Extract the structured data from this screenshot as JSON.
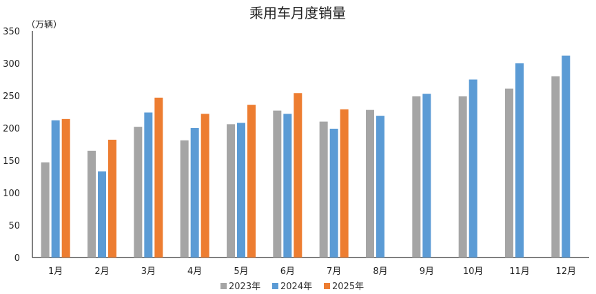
{
  "chart_data": {
    "type": "bar",
    "title": "乘用车月度销量",
    "unit_label": "（万辆）",
    "ylim": [
      0,
      350
    ],
    "y_ticks": [
      0,
      50,
      100,
      150,
      200,
      250,
      300,
      350
    ],
    "categories": [
      "1月",
      "2月",
      "3月",
      "4月",
      "5月",
      "6月",
      "7月",
      "8月",
      "9月",
      "10月",
      "11月",
      "12月"
    ],
    "series": [
      {
        "name": "2023年",
        "color": "#a5a5a5",
        "values": [
          147,
          165,
          202,
          181,
          206,
          227,
          210,
          228,
          249,
          249,
          261,
          280
        ]
      },
      {
        "name": "2024年",
        "color": "#5b9bd5",
        "values": [
          212,
          133,
          224,
          200,
          208,
          222,
          199,
          219,
          253,
          275,
          300,
          312
        ]
      },
      {
        "name": "2025年",
        "color": "#ed7d31",
        "values": [
          214,
          182,
          247,
          222,
          236,
          254,
          229,
          null,
          null,
          null,
          null,
          null
        ]
      }
    ],
    "legend_position": "bottom",
    "grid": false
  }
}
